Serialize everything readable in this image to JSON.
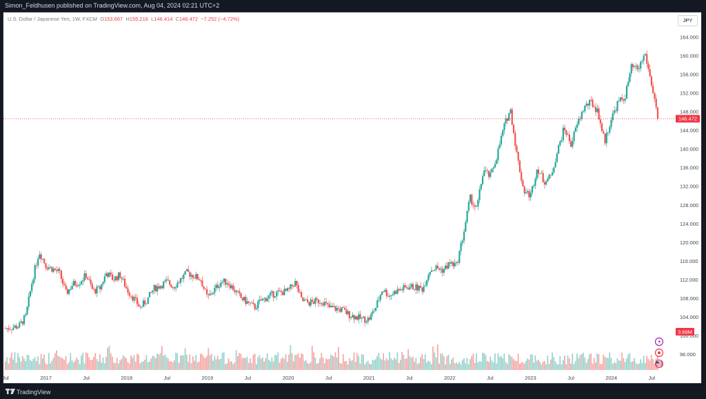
{
  "header": {
    "publisher_line": "Simon_Feldhusen published on TradingView.com, Aug 04, 2024 02:21 UTC+2"
  },
  "legend": {
    "symbol": "U.S. Dollar / Japanese Yen, 1W, FXCM",
    "o_label": "O",
    "o_value": "153.667",
    "h_label": "H",
    "h_value": "155.216",
    "l_label": "L",
    "l_value": "146.414",
    "c_label": "C",
    "c_value": "146.472",
    "change": "−7.252 (−4.72%)"
  },
  "currency_button": "JPY",
  "price_tag": "146.472",
  "volume_tag": "3.69M",
  "footer": {
    "brand": "TradingView"
  },
  "colors": {
    "up": "#26a69a",
    "down": "#ef5350",
    "vol_up": "#9bd3cd",
    "vol_down": "#f5a9a7",
    "price_line": "#f23645"
  },
  "icons": [
    "lightning-event-icon",
    "record-event-icon",
    "us-flag-event-icon"
  ],
  "chart_data": {
    "type": "candlestick",
    "interval": "1W",
    "ylim": [
      92,
      166
    ],
    "y_ticks": [
      "164.000",
      "160.000",
      "156.000",
      "152.000",
      "148.000",
      "144.000",
      "140.000",
      "136.000",
      "132.000",
      "128.000",
      "124.000",
      "120.000",
      "116.000",
      "112.000",
      "108.000",
      "104.000",
      "100.000",
      "96.000"
    ],
    "x_ticks": [
      "Jul",
      "2017",
      "Jul",
      "2018",
      "Jul",
      "2019",
      "Jul",
      "2020",
      "Jul",
      "2021",
      "Jul",
      "2022",
      "Jul",
      "2023",
      "Jul",
      "2024",
      "Jul"
    ],
    "x_tick_dates": [
      "2016-07",
      "2017-01",
      "2017-07",
      "2018-01",
      "2018-07",
      "2019-01",
      "2019-07",
      "2020-01",
      "2020-07",
      "2021-01",
      "2021-07",
      "2022-01",
      "2022-07",
      "2023-01",
      "2023-07",
      "2024-01",
      "2024-07"
    ],
    "last_close": 146.472,
    "last_volume": "3.69M",
    "close_path": [
      {
        "date": "2016-07",
        "close": 101.5
      },
      {
        "date": "2016-09",
        "close": 102.0
      },
      {
        "date": "2016-10",
        "close": 104.0
      },
      {
        "date": "2016-11",
        "close": 112.0
      },
      {
        "date": "2016-12",
        "close": 118.0
      },
      {
        "date": "2017-01",
        "close": 115.0
      },
      {
        "date": "2017-03",
        "close": 113.5
      },
      {
        "date": "2017-04",
        "close": 109.0
      },
      {
        "date": "2017-05",
        "close": 111.0
      },
      {
        "date": "2017-06",
        "close": 111.5
      },
      {
        "date": "2017-07",
        "close": 113.0
      },
      {
        "date": "2017-08",
        "close": 109.5
      },
      {
        "date": "2017-09",
        "close": 110.0
      },
      {
        "date": "2017-10",
        "close": 113.5
      },
      {
        "date": "2017-11",
        "close": 112.0
      },
      {
        "date": "2017-12",
        "close": 113.0
      },
      {
        "date": "2018-01",
        "close": 110.0
      },
      {
        "date": "2018-03",
        "close": 106.0
      },
      {
        "date": "2018-04",
        "close": 107.5
      },
      {
        "date": "2018-05",
        "close": 110.0
      },
      {
        "date": "2018-07",
        "close": 111.5
      },
      {
        "date": "2018-08",
        "close": 110.5
      },
      {
        "date": "2018-10",
        "close": 113.5
      },
      {
        "date": "2018-12",
        "close": 112.0
      },
      {
        "date": "2019-01",
        "close": 108.0
      },
      {
        "date": "2019-03",
        "close": 111.5
      },
      {
        "date": "2019-04",
        "close": 111.5
      },
      {
        "date": "2019-06",
        "close": 108.0
      },
      {
        "date": "2019-08",
        "close": 106.0
      },
      {
        "date": "2019-09",
        "close": 107.5
      },
      {
        "date": "2019-11",
        "close": 109.0
      },
      {
        "date": "2020-01",
        "close": 109.5
      },
      {
        "date": "2020-02",
        "close": 111.5
      },
      {
        "date": "2020-03",
        "close": 107.5
      },
      {
        "date": "2020-04",
        "close": 107.0
      },
      {
        "date": "2020-06",
        "close": 107.5
      },
      {
        "date": "2020-07",
        "close": 106.0
      },
      {
        "date": "2020-09",
        "close": 105.5
      },
      {
        "date": "2020-10",
        "close": 104.5
      },
      {
        "date": "2020-12",
        "close": 103.5
      },
      {
        "date": "2021-01",
        "close": 103.5
      },
      {
        "date": "2021-02",
        "close": 106.0
      },
      {
        "date": "2021-03",
        "close": 110.0
      },
      {
        "date": "2021-04",
        "close": 108.5
      },
      {
        "date": "2021-05",
        "close": 109.5
      },
      {
        "date": "2021-07",
        "close": 110.5
      },
      {
        "date": "2021-09",
        "close": 110.0
      },
      {
        "date": "2021-10",
        "close": 114.0
      },
      {
        "date": "2021-11",
        "close": 114.5
      },
      {
        "date": "2021-12",
        "close": 114.0
      },
      {
        "date": "2022-01",
        "close": 115.5
      },
      {
        "date": "2022-02",
        "close": 115.0
      },
      {
        "date": "2022-03",
        "close": 121.5
      },
      {
        "date": "2022-04",
        "close": 129.5
      },
      {
        "date": "2022-05",
        "close": 127.0
      },
      {
        "date": "2022-06",
        "close": 135.5
      },
      {
        "date": "2022-07",
        "close": 134.0
      },
      {
        "date": "2022-08",
        "close": 138.5
      },
      {
        "date": "2022-09",
        "close": 144.5
      },
      {
        "date": "2022-10",
        "close": 148.5
      },
      {
        "date": "2022-11",
        "close": 138.5
      },
      {
        "date": "2022-12",
        "close": 131.0
      },
      {
        "date": "2023-01",
        "close": 130.0
      },
      {
        "date": "2023-02",
        "close": 136.0
      },
      {
        "date": "2023-03",
        "close": 133.0
      },
      {
        "date": "2023-04",
        "close": 134.0
      },
      {
        "date": "2023-05",
        "close": 139.5
      },
      {
        "date": "2023-06",
        "close": 144.5
      },
      {
        "date": "2023-07",
        "close": 141.0
      },
      {
        "date": "2023-08",
        "close": 145.5
      },
      {
        "date": "2023-09",
        "close": 149.0
      },
      {
        "date": "2023-10",
        "close": 150.0
      },
      {
        "date": "2023-11",
        "close": 148.0
      },
      {
        "date": "2023-12",
        "close": 141.5
      },
      {
        "date": "2024-01",
        "close": 146.5
      },
      {
        "date": "2024-02",
        "close": 150.0
      },
      {
        "date": "2024-03",
        "close": 151.0
      },
      {
        "date": "2024-04",
        "close": 157.5
      },
      {
        "date": "2024-05",
        "close": 157.0
      },
      {
        "date": "2024-06",
        "close": 160.5
      },
      {
        "date": "2024-07",
        "close": 153.7
      },
      {
        "date": "2024-08",
        "close": 146.47
      }
    ]
  }
}
